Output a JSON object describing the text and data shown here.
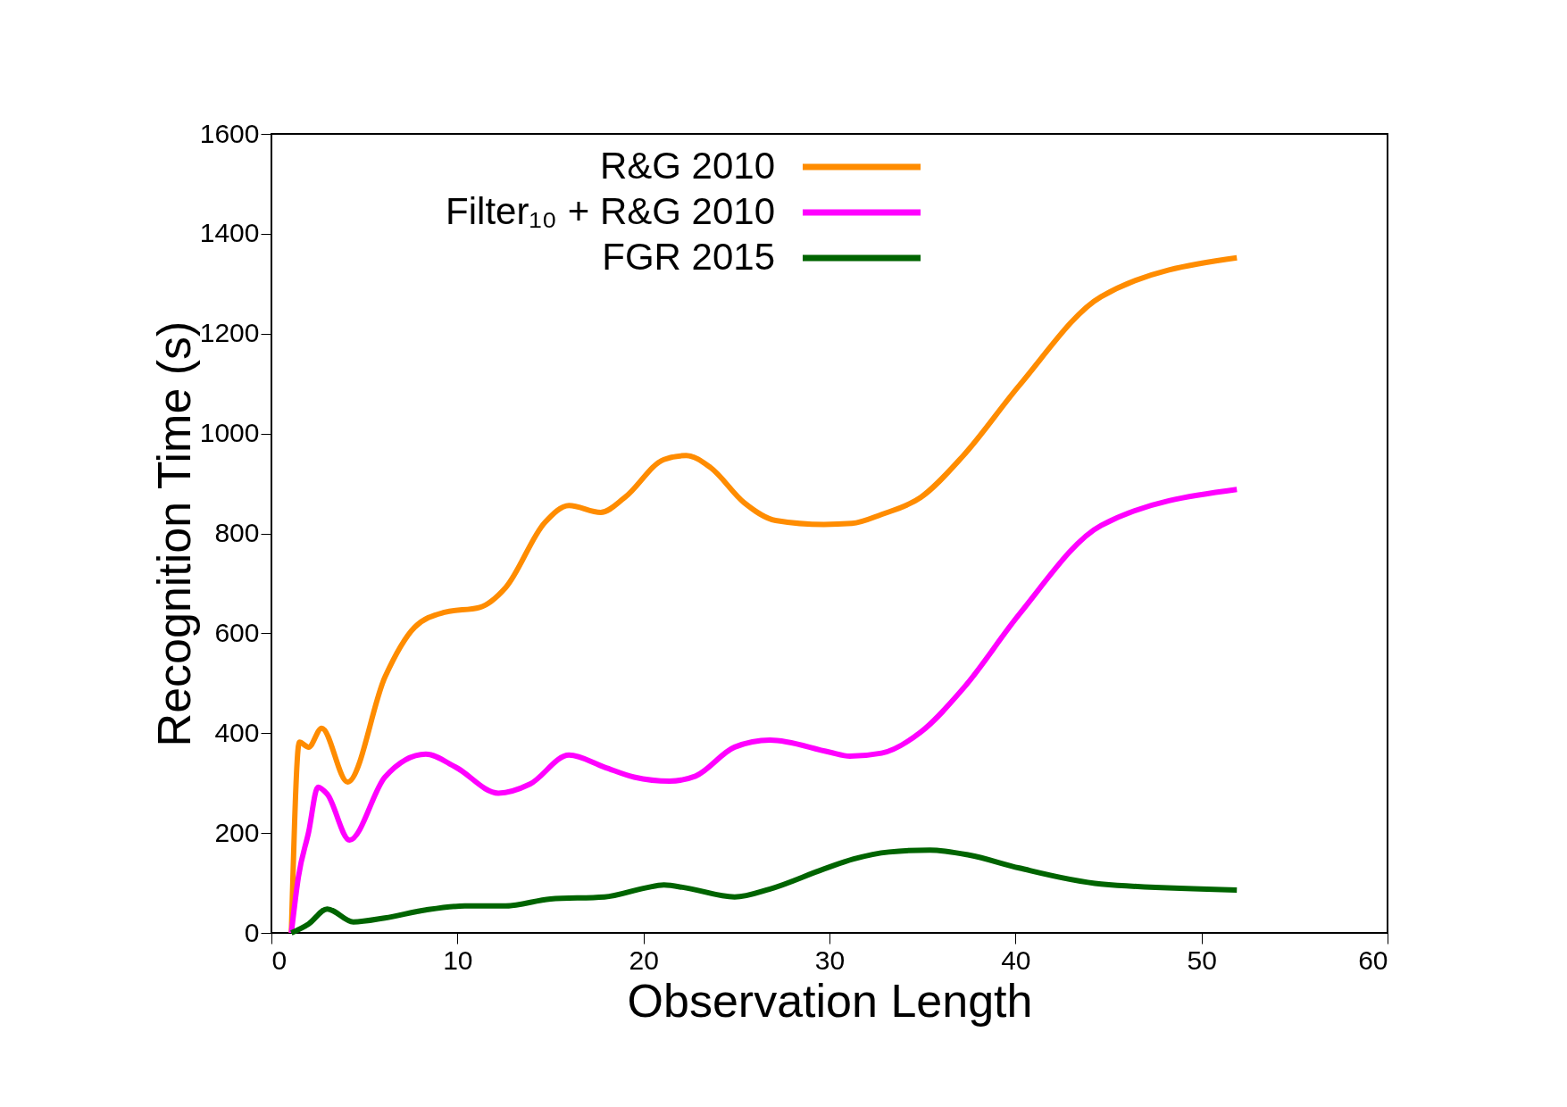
{
  "chart_data": {
    "type": "line",
    "xlabel": "Observation Length",
    "ylabel": "Recognition Time (s)",
    "xlim": [
      0,
      60
    ],
    "ylim": [
      0,
      1600
    ],
    "xticks": [
      0,
      10,
      20,
      30,
      40,
      50,
      60
    ],
    "yticks": [
      0,
      200,
      400,
      600,
      800,
      1000,
      1200,
      1400,
      1600
    ],
    "grid": false,
    "legend": "top",
    "marker": "none",
    "line_style": "solid",
    "series": [
      {
        "name": "R&G 2010",
        "color": "#ff8c00",
        "x": [
          1.07,
          1.5,
          2.0,
          2.7,
          4.1,
          6.1,
          7.7,
          9.3,
          11.2,
          12.6,
          14.7,
          16.0,
          17.7,
          19.0,
          21.1,
          22.3,
          23.6,
          25.4,
          27.1,
          29.7,
          31.2,
          32.8,
          34.9,
          37.2,
          40.2,
          44.6,
          51.9
        ],
        "values": [
          0,
          382,
          372,
          410,
          302,
          512,
          612,
          642,
          652,
          692,
          822,
          856,
          842,
          872,
          948,
          956,
          932,
          862,
          826,
          818,
          820,
          838,
          872,
          956,
          1096,
          1274,
          1352
        ]
      },
      {
        "name": "Filter₁₀ + R&G 2010",
        "color": "#ff00ff",
        "x": [
          1.07,
          1.45,
          2.0,
          2.5,
          3.0,
          4.2,
          6.1,
          8.3,
          9.9,
          12.2,
          13.9,
          16.0,
          17.9,
          19.5,
          21.4,
          22.8,
          24.9,
          26.8,
          30.0,
          31.1,
          32.8,
          34.9,
          37.2,
          40.2,
          44.6,
          51.9
        ],
        "values": [
          0,
          112,
          202,
          292,
          278,
          186,
          312,
          358,
          332,
          280,
          298,
          356,
          332,
          312,
          304,
          314,
          372,
          386,
          362,
          354,
          360,
          402,
          490,
          638,
          816,
          888
        ]
      },
      {
        "name": "FGR 2015",
        "color": "#006400",
        "x": [
          1.07,
          2.0,
          3.0,
          4.4,
          6.1,
          8.3,
          10.4,
          12.6,
          15.0,
          17.9,
          20.1,
          21.1,
          22.3,
          24.9,
          26.8,
          29.7,
          31.3,
          33.2,
          35.4,
          37.5,
          40.2,
          44.6,
          51.9
        ],
        "values": [
          0,
          18,
          48,
          22,
          30,
          46,
          54,
          54,
          68,
          72,
          90,
          96,
          90,
          72,
          88,
          128,
          148,
          162,
          166,
          156,
          130,
          98,
          86
        ]
      }
    ]
  }
}
